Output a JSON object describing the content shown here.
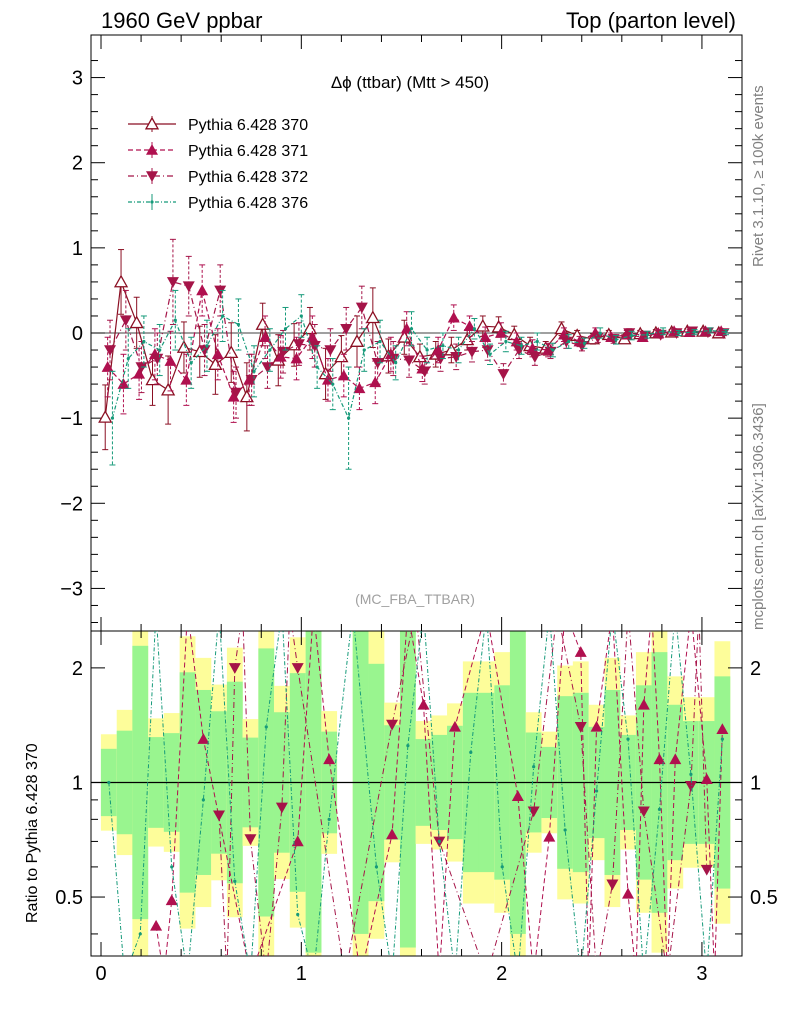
{
  "header": {
    "left": "1960 GeV ppbar",
    "right": "Top (parton level)"
  },
  "side": {
    "rivet": "Rivet 3.1.10, ≥ 100k events",
    "mcplots": "mcplots.cern.ch [arXiv:1306.3436]"
  },
  "colors": {
    "s370": "#8b0f23",
    "s371": "#b0104f",
    "s372": "#a51448",
    "s376": "#169a7a",
    "band_inner": "#99f58f",
    "band_outer": "#fdfd9a"
  },
  "chart_data": [
    {
      "type": "line",
      "panel": "main",
      "title": "Δϕ (ttbar) (Mtt > 450)",
      "watermark": "(MC_FBA_TTBAR)",
      "xlim": [
        -0.05,
        3.2
      ],
      "ylim": [
        -3.5,
        3.5
      ],
      "xticks": [
        0,
        1,
        2,
        3
      ],
      "yticks": [
        -3,
        -2,
        -1,
        0,
        1,
        2,
        3
      ],
      "legend_placement": "top-left",
      "x": [
        0.039,
        0.118,
        0.196,
        0.275,
        0.353,
        0.432,
        0.511,
        0.589,
        0.668,
        0.746,
        0.825,
        0.903,
        0.982,
        1.061,
        1.139,
        1.218,
        1.296,
        1.375,
        1.453,
        1.532,
        1.61,
        1.689,
        1.767,
        1.846,
        1.924,
        2.003,
        2.081,
        2.16,
        2.238,
        2.317,
        2.395,
        2.474,
        2.553,
        2.631,
        2.71,
        2.788,
        2.867,
        2.945,
        3.024,
        3.102
      ],
      "series": [
        {
          "name": "Pythia 6.428 370",
          "marker": "triangle-up-open",
          "dash": "",
          "values": [
            -0.99,
            0.6,
            0.12,
            -0.55,
            -0.67,
            -0.17,
            -0.22,
            -0.37,
            -0.23,
            -0.75,
            0.1,
            -0.32,
            -0.14,
            0.05,
            -0.48,
            -0.28,
            -0.1,
            0.18,
            -0.27,
            -0.05,
            -0.28,
            -0.25,
            -0.2,
            -0.08,
            0.08,
            0.07,
            -0.02,
            -0.15,
            -0.18,
            0.05,
            -0.03,
            -0.07,
            -0.02,
            -0.07,
            -0.01,
            0.0,
            0.01,
            0.02,
            0.02,
            0.0
          ],
          "errors": [
            0.38,
            0.38,
            0.3,
            0.3,
            0.4,
            0.3,
            0.3,
            0.35,
            0.35,
            0.4,
            0.25,
            0.3,
            0.25,
            0.25,
            0.3,
            0.25,
            0.3,
            0.35,
            0.2,
            0.2,
            0.15,
            0.15,
            0.15,
            0.12,
            0.12,
            0.12,
            0.1,
            0.1,
            0.08,
            0.08,
            0.06,
            0.06,
            0.05,
            0.05,
            0.04,
            0.04,
            0.03,
            0.03,
            0.03,
            0.03
          ]
        },
        {
          "name": "Pythia 6.428 371",
          "marker": "triangle-up",
          "dash": "5,3",
          "values": [
            -0.4,
            -0.6,
            -0.48,
            -0.25,
            -0.33,
            -0.55,
            0.5,
            -0.25,
            -0.75,
            -0.55,
            -0.05,
            -0.28,
            -0.3,
            -0.05,
            -0.55,
            -0.5,
            -0.65,
            -0.58,
            -0.25,
            0.05,
            -0.42,
            -0.2,
            0.18,
            0.08,
            -0.05,
            0.0,
            -0.1,
            -0.18,
            -0.2,
            -0.02,
            -0.1,
            0.0,
            -0.05,
            -0.02,
            -0.05,
            0.0,
            0.02,
            0.01,
            0.02,
            0.02
          ],
          "errors": [
            0.35,
            0.35,
            0.3,
            0.3,
            0.35,
            0.3,
            0.3,
            0.3,
            0.3,
            0.3,
            0.25,
            0.25,
            0.25,
            0.25,
            0.25,
            0.25,
            0.25,
            0.25,
            0.2,
            0.2,
            0.15,
            0.15,
            0.15,
            0.12,
            0.12,
            0.12,
            0.1,
            0.1,
            0.08,
            0.08,
            0.06,
            0.06,
            0.05,
            0.05,
            0.04,
            0.04,
            0.03,
            0.03,
            0.03,
            0.03
          ]
        },
        {
          "name": "Pythia 6.428 372",
          "marker": "triangle-down",
          "dash": "6,3,1,3",
          "values": [
            -0.2,
            0.15,
            -0.4,
            -0.3,
            0.6,
            0.55,
            -0.2,
            0.5,
            -0.7,
            -0.55,
            -0.4,
            -0.22,
            -0.13,
            -0.15,
            -0.2,
            0.05,
            0.3,
            -0.35,
            -0.3,
            -0.32,
            -0.45,
            -0.3,
            -0.28,
            -0.22,
            -0.2,
            -0.48,
            -0.2,
            -0.28,
            -0.22,
            -0.1,
            -0.15,
            -0.05,
            -0.07,
            0.0,
            -0.03,
            -0.02,
            0.0,
            0.02,
            0.01,
            0.0
          ],
          "errors": [
            0.35,
            0.35,
            0.3,
            0.3,
            0.5,
            0.35,
            0.3,
            0.3,
            0.3,
            0.3,
            0.25,
            0.25,
            0.25,
            0.25,
            0.25,
            0.25,
            0.25,
            0.25,
            0.2,
            0.2,
            0.15,
            0.15,
            0.15,
            0.12,
            0.12,
            0.12,
            0.1,
            0.1,
            0.08,
            0.08,
            0.06,
            0.06,
            0.05,
            0.05,
            0.04,
            0.04,
            0.03,
            0.03,
            0.03,
            0.03
          ]
        },
        {
          "name": "Pythia 6.428 376",
          "marker": "dot",
          "dash": "4,2,1,2",
          "values": [
            -1.0,
            -0.3,
            -0.1,
            -0.2,
            0.15,
            -0.35,
            -0.15,
            0.2,
            0.1,
            -0.45,
            -0.2,
            0.05,
            0.2,
            -0.4,
            -0.6,
            -1.0,
            -0.2,
            -0.1,
            -0.35,
            0.05,
            -0.2,
            -0.15,
            -0.2,
            0.05,
            -0.25,
            -0.1,
            -0.15,
            -0.1,
            -0.2,
            -0.1,
            -0.12,
            0.0,
            -0.08,
            -0.03,
            -0.02,
            0.02,
            0.0,
            0.01,
            0.03,
            0.01
          ],
          "errors": [
            0.55,
            0.35,
            0.3,
            0.3,
            0.35,
            0.3,
            0.3,
            0.3,
            0.3,
            0.3,
            0.25,
            0.25,
            0.25,
            0.25,
            0.3,
            0.6,
            0.25,
            0.25,
            0.2,
            0.2,
            0.15,
            0.15,
            0.15,
            0.12,
            0.12,
            0.12,
            0.1,
            0.1,
            0.08,
            0.08,
            0.06,
            0.06,
            0.05,
            0.05,
            0.04,
            0.04,
            0.03,
            0.03,
            0.03,
            0.03
          ]
        }
      ]
    },
    {
      "type": "line",
      "panel": "ratio",
      "ylabel": "Ratio to Pythia 6.428 370",
      "xlim": [
        -0.05,
        3.2
      ],
      "ylim": [
        0.35,
        2.5
      ],
      "yscale": "log",
      "xticks": [
        0,
        1,
        2,
        3
      ],
      "yticks": [
        0.5,
        1,
        2
      ],
      "reference": 1,
      "series": [
        {
          "name": "Pythia 6.428 371",
          "x": [
            0.275,
            0.353,
            0.511,
            0.982,
            1.139,
            1.453,
            1.61,
            1.767,
            2.081,
            2.238,
            2.395,
            2.474,
            2.631,
            2.71,
            2.788,
            2.867,
            3.024,
            3.102
          ],
          "values": [
            0.42,
            0.49,
            1.3,
            0.7,
            1.15,
            0.73,
            1.6,
            1.4,
            0.92,
            0.72,
            2.2,
            1.4,
            0.51,
            1.6,
            1.15,
            1.15,
            1.02,
            1.38
          ]
        },
        {
          "name": "Pythia 6.428 372",
          "x": [
            0.589,
            0.668,
            0.746,
            0.903,
            0.982,
            1.453,
            1.689,
            2.16,
            2.395,
            2.553,
            2.71,
            2.945,
            3.024
          ],
          "values": [
            0.82,
            2.0,
            0.71,
            0.86,
            2.0,
            1.42,
            0.7,
            0.84,
            1.4,
            0.54,
            0.84,
            0.98,
            0.59
          ]
        },
        {
          "name": "Pythia 6.428 376",
          "x": [
            0.039,
            0.196,
            0.353,
            0.511,
            0.668,
            0.825,
            0.982,
            1.139,
            1.375,
            1.532,
            1.689,
            1.846,
            2.003,
            2.16,
            2.317,
            2.474,
            2.631,
            2.788,
            2.945,
            3.102
          ],
          "values": [
            1.0,
            0.4,
            0.6,
            0.9,
            0.55,
            1.4,
            0.45,
            0.8,
            0.6,
            1.25,
            0.7,
            1.2,
            0.6,
            1.1,
            0.75,
            0.95,
            1.3,
            0.85,
            1.05,
            1.3
          ]
        }
      ]
    }
  ]
}
